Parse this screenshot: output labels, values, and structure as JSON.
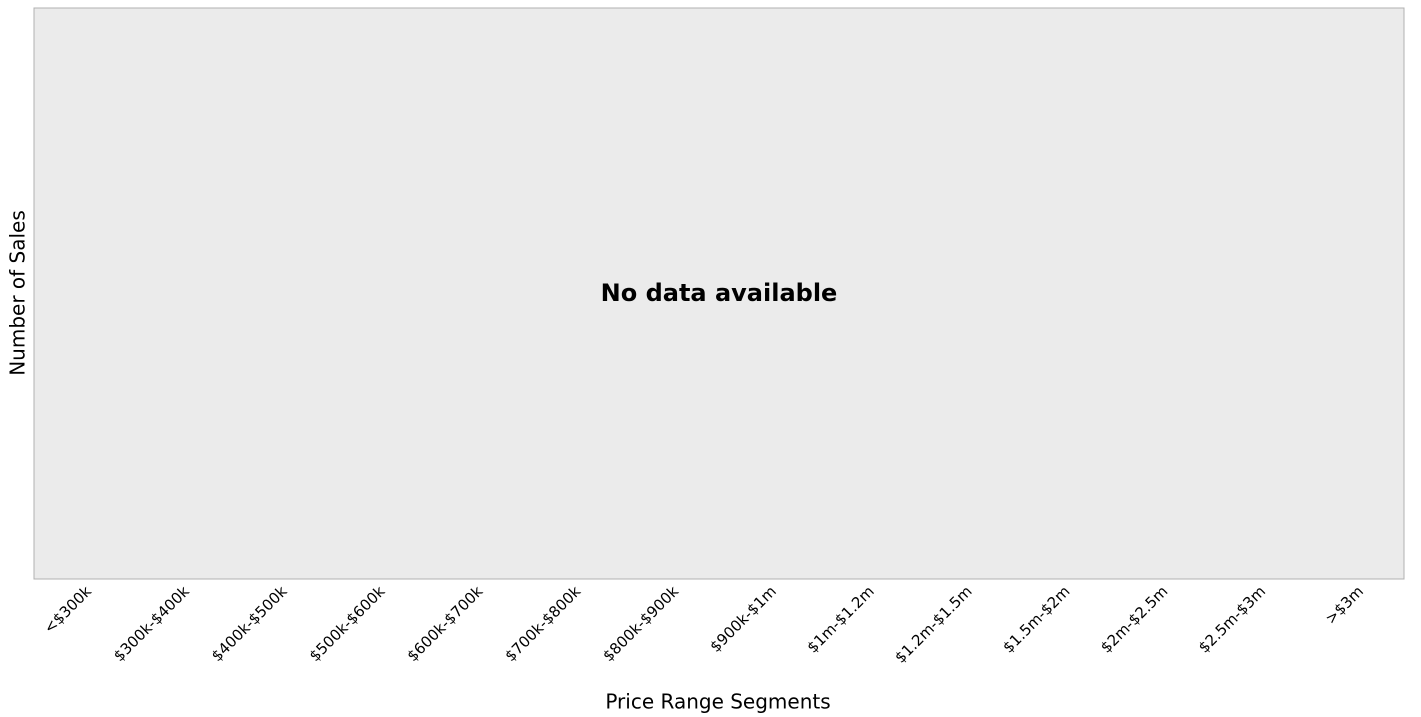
{
  "chart_data": {
    "type": "bar",
    "annotation": "No data available",
    "xlabel": "Price Range Segments",
    "ylabel": "Number of Sales",
    "categories": [
      "<$300k",
      "$300k-$400k",
      "$400k-$500k",
      "$500k-$600k",
      "$600k-$700k",
      "$700k-$800k",
      "$800k-$900k",
      "$900k-$1m",
      "$1m-$1.2m",
      "$1.2m-$1.5m",
      "$1.5m-$2m",
      "$2m-$2.5m",
      "$2.5m-$3m",
      ">$3m"
    ]
  }
}
